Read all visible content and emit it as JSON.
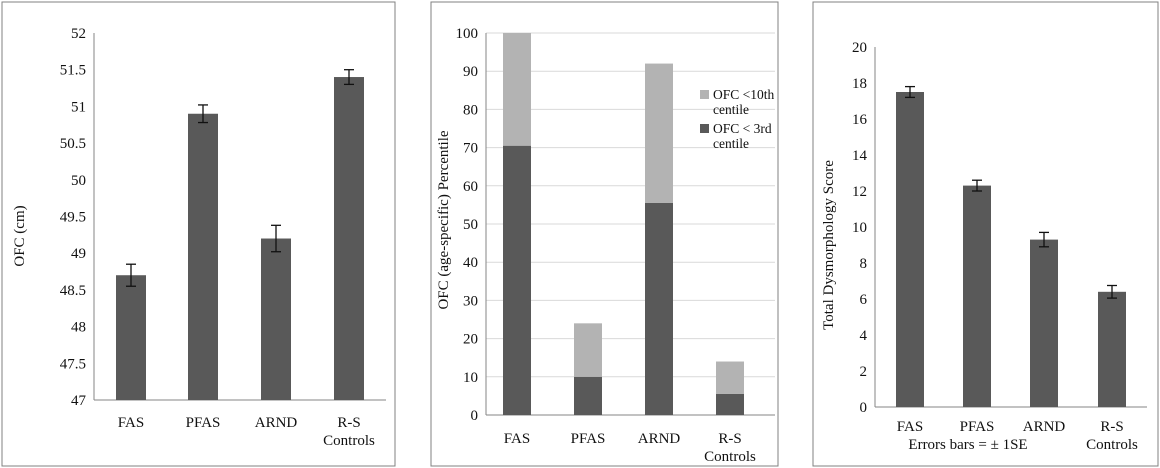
{
  "colors": {
    "dark_bar": "#595959",
    "light_bar": "#b3b3b3"
  },
  "chart_data": [
    {
      "type": "bar",
      "categories": [
        "FAS",
        "PFAS",
        "ARND",
        "R-S Controls"
      ],
      "values": [
        48.7,
        50.9,
        49.2,
        51.4
      ],
      "errors": [
        0.15,
        0.12,
        0.18,
        0.1
      ],
      "ylabel": "OFC (cm)",
      "ylim": [
        47,
        52
      ],
      "yticks": [
        "47",
        "47.5",
        "48",
        "48.5",
        "49",
        "49.5",
        "50",
        "50.5",
        "51",
        "51.5",
        "52"
      ],
      "grid": false,
      "bar_color": "#595959"
    },
    {
      "type": "bar",
      "stacked": true,
      "categories": [
        "FAS",
        "PFAS",
        "ARND",
        "R-S Controls"
      ],
      "series": [
        {
          "name": "OFC < 3rd centile",
          "values": [
            70.5,
            10,
            55.5,
            5.5
          ],
          "color": "#595959"
        },
        {
          "name": "OFC <10th centile",
          "values": [
            29.5,
            14,
            36.5,
            8.5
          ],
          "color": "#b3b3b3"
        }
      ],
      "ylabel": "OFC (age-specific) Percentile",
      "ylim": [
        0,
        100
      ],
      "yticks": [
        "0",
        "10",
        "20",
        "30",
        "40",
        "50",
        "60",
        "70",
        "80",
        "90",
        "100"
      ],
      "grid": true,
      "legend": "right"
    },
    {
      "type": "bar",
      "categories": [
        "FAS",
        "PFAS",
        "ARND",
        "R-S Controls"
      ],
      "values": [
        17.5,
        12.3,
        9.3,
        6.4
      ],
      "errors": [
        0.3,
        0.3,
        0.4,
        0.35
      ],
      "ylabel": "Total Dysmorphology Score",
      "xlabel": "Errors bars = ± 1SE",
      "ylim": [
        0,
        20
      ],
      "yticks": [
        "0",
        "2",
        "4",
        "6",
        "8",
        "10",
        "12",
        "14",
        "16",
        "18",
        "20"
      ],
      "grid": false,
      "bar_color": "#595959"
    }
  ]
}
